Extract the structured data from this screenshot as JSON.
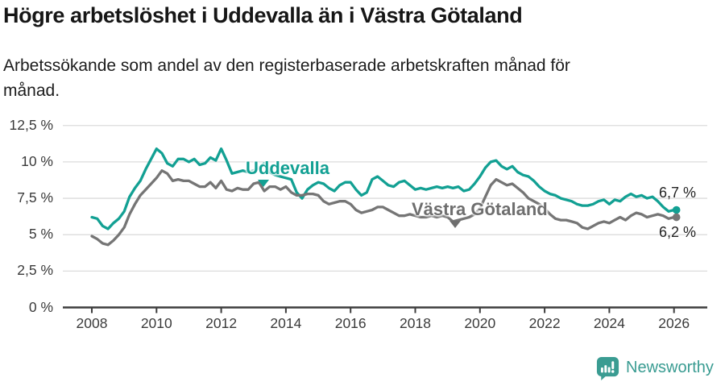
{
  "header": {
    "title": "Högre arbetslöshet i Uddevalla än i Västra Götaland",
    "subtitle_line1": "Arbetssökande som andel av den registerbaserade arbetskraften månad för",
    "subtitle_line2": "månad."
  },
  "chart_data": {
    "type": "line",
    "title": "Högre arbetslöshet i Uddevalla än i Västra Götaland",
    "subtitle": "Arbetssökande som andel av den registerbaserade arbetskraften månad för månad.",
    "x_unit": "year, monthly observations",
    "x_start": 2008.0,
    "x_step": 0.1666667,
    "ylim": [
      0,
      12.5
    ],
    "grid": "horizontal",
    "legend": "inline-annotations",
    "y_tick_values": [
      12.5,
      10,
      7.5,
      5,
      2.5,
      0
    ],
    "y_tick_labels": [
      "12,5 %",
      "10 %",
      "7,5 %",
      "5 %",
      "2,5 %",
      "0 %"
    ],
    "x_tick_values": [
      2008,
      2010,
      2012,
      2014,
      2016,
      2018,
      2020,
      2022,
      2024,
      2026
    ],
    "x_tick_labels": [
      "2008",
      "2010",
      "2012",
      "2014",
      "2016",
      "2018",
      "2020",
      "2022",
      "2024",
      "2026"
    ],
    "series": [
      {
        "name": "Uddevalla",
        "color": "#12a093",
        "end_label": "6,7 %",
        "end_value": 6.7,
        "values": [
          6.2,
          6.1,
          5.6,
          5.4,
          5.8,
          6.1,
          6.6,
          7.6,
          8.2,
          8.7,
          9.5,
          10.2,
          10.9,
          10.6,
          9.9,
          9.7,
          10.2,
          10.2,
          10.0,
          10.2,
          9.8,
          9.9,
          10.3,
          10.1,
          10.9,
          10.1,
          9.2,
          9.3,
          9.4,
          9.3,
          9.4,
          9.6,
          9.9,
          9.3,
          9.1,
          9.0,
          8.9,
          8.8,
          7.9,
          7.5,
          8.1,
          8.4,
          8.6,
          8.5,
          8.2,
          8.0,
          8.4,
          8.6,
          8.6,
          8.1,
          7.7,
          7.9,
          8.8,
          9.0,
          8.7,
          8.4,
          8.3,
          8.6,
          8.7,
          8.4,
          8.1,
          8.2,
          8.1,
          8.2,
          8.3,
          8.2,
          8.3,
          8.2,
          8.3,
          8.0,
          8.1,
          8.5,
          9.0,
          9.6,
          10.0,
          10.1,
          9.7,
          9.5,
          9.7,
          9.3,
          9.1,
          9.0,
          8.7,
          8.3,
          8.0,
          7.8,
          7.7,
          7.5,
          7.4,
          7.3,
          7.1,
          7.0,
          7.0,
          7.1,
          7.3,
          7.4,
          7.1,
          7.4,
          7.3,
          7.6,
          7.8,
          7.6,
          7.7,
          7.5,
          7.6,
          7.3,
          6.9,
          6.6,
          6.7
        ]
      },
      {
        "name": "Västra Götaland",
        "color": "#757575",
        "end_label": "6,2 %",
        "end_value": 6.2,
        "values": [
          4.9,
          4.7,
          4.4,
          4.3,
          4.6,
          5.0,
          5.5,
          6.4,
          7.1,
          7.7,
          8.1,
          8.5,
          8.9,
          9.4,
          9.2,
          8.7,
          8.8,
          8.7,
          8.7,
          8.5,
          8.3,
          8.3,
          8.6,
          8.2,
          8.7,
          8.1,
          8.0,
          8.2,
          8.1,
          8.1,
          8.5,
          8.6,
          8.0,
          8.3,
          8.3,
          8.1,
          8.3,
          7.9,
          7.7,
          7.7,
          7.8,
          7.8,
          7.7,
          7.3,
          7.1,
          7.2,
          7.3,
          7.3,
          7.1,
          6.7,
          6.5,
          6.6,
          6.7,
          6.9,
          6.9,
          6.7,
          6.5,
          6.3,
          6.3,
          6.4,
          6.3,
          6.2,
          6.2,
          6.3,
          6.2,
          6.3,
          6.2,
          5.9,
          6.0,
          6.1,
          6.2,
          6.4,
          6.8,
          7.6,
          8.4,
          8.8,
          8.6,
          8.4,
          8.5,
          8.2,
          7.9,
          7.5,
          7.3,
          7.1,
          6.8,
          6.4,
          6.1,
          6.0,
          6.0,
          5.9,
          5.8,
          5.5,
          5.4,
          5.6,
          5.8,
          5.9,
          5.8,
          6.0,
          6.2,
          6.0,
          6.3,
          6.5,
          6.4,
          6.2,
          6.3,
          6.4,
          6.3,
          6.1,
          6.2
        ]
      }
    ]
  },
  "colors": {
    "accent_teal": "#12a093",
    "series_gray": "#757575",
    "grid": "#dcdcdc",
    "axis": "#3d3d3d",
    "brand_teal": "#3a9c92"
  },
  "footer": {
    "brand": "Newsworthy"
  }
}
